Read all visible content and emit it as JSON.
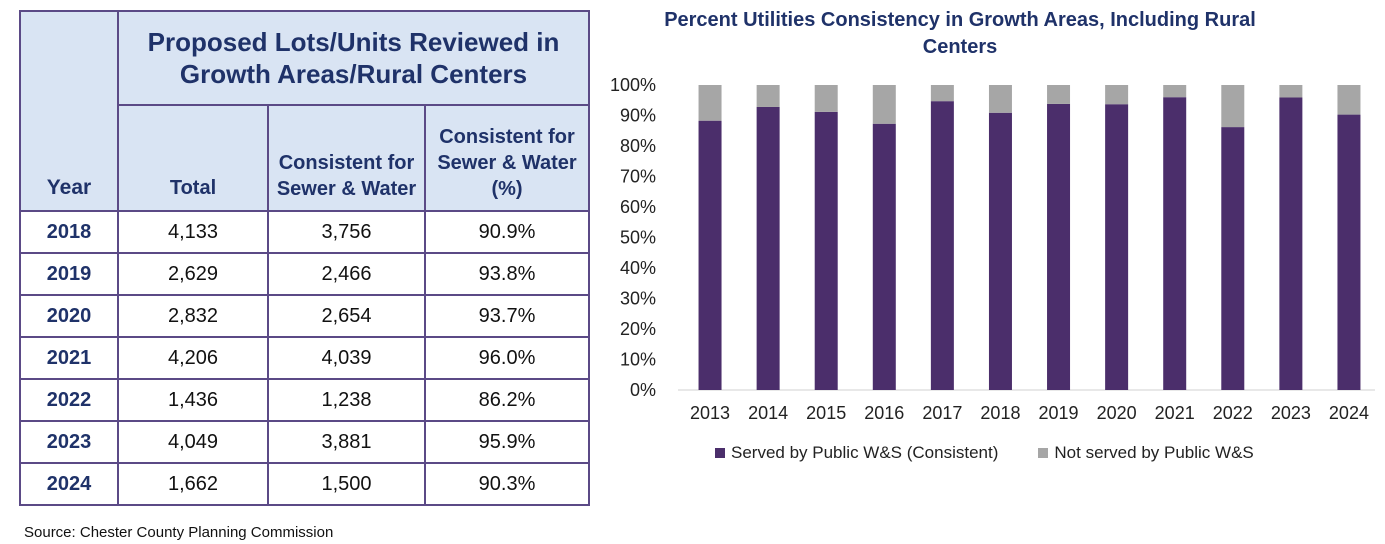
{
  "table": {
    "group_header": "Proposed Lots/Units Reviewed in Growth Areas/Rural Centers",
    "year_header": "Year",
    "total_header": "Total",
    "consistent_header": "Consistent for Sewer & Water",
    "consistent_pct_header": "Consistent for Sewer & Water (%)",
    "rows": [
      {
        "year": "2018",
        "total": "4,133",
        "consistent": "3,756",
        "pct": "90.9%"
      },
      {
        "year": "2019",
        "total": "2,629",
        "consistent": "2,466",
        "pct": "93.8%"
      },
      {
        "year": "2020",
        "total": "2,832",
        "consistent": "2,654",
        "pct": "93.7%"
      },
      {
        "year": "2021",
        "total": "4,206",
        "consistent": "4,039",
        "pct": "96.0%"
      },
      {
        "year": "2022",
        "total": "1,436",
        "consistent": "1,238",
        "pct": "86.2%"
      },
      {
        "year": "2023",
        "total": "4,049",
        "consistent": "3,881",
        "pct": "95.9%"
      },
      {
        "year": "2024",
        "total": "1,662",
        "consistent": "1,500",
        "pct": "90.3%"
      }
    ]
  },
  "source": "Source: Chester County Planning Commission",
  "chart_data": {
    "type": "bar",
    "stacked": true,
    "title": "Percent Utilities Consistency in Growth Areas, Including Rural Centers",
    "xlabel": "",
    "ylabel": "",
    "ylim": [
      0,
      100
    ],
    "y_ticks": [
      "0%",
      "10%",
      "20%",
      "30%",
      "40%",
      "50%",
      "60%",
      "70%",
      "80%",
      "90%",
      "100%"
    ],
    "categories": [
      "2013",
      "2014",
      "2015",
      "2016",
      "2017",
      "2018",
      "2019",
      "2020",
      "2021",
      "2022",
      "2023",
      "2024"
    ],
    "series": [
      {
        "name": "Served by Public W&S (Consistent)",
        "color": "#4b2e6b",
        "values": [
          88.3,
          92.8,
          91.2,
          87.3,
          94.7,
          90.9,
          93.8,
          93.7,
          96.0,
          86.2,
          95.9,
          90.3
        ]
      },
      {
        "name": "Not served by Public W&S",
        "color": "#a6a6a6",
        "values": [
          11.7,
          7.2,
          8.8,
          12.7,
          5.3,
          9.1,
          6.2,
          6.3,
          4.0,
          13.8,
          4.1,
          9.7
        ]
      }
    ],
    "legend_position": "bottom",
    "grid": false
  }
}
